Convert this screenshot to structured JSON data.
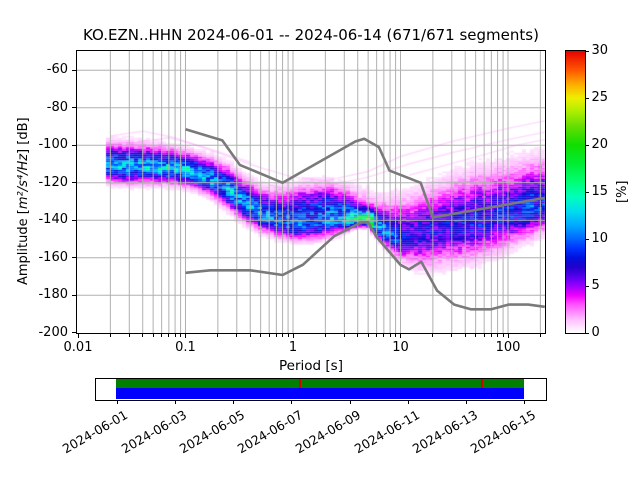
{
  "chart_data": {
    "type": "heatmap",
    "title": "KO.EZN..HHN   2024-06-01 -- 2024-06-14  (671/671 segments)",
    "xlabel": "Period [s]",
    "ylabel_parts": {
      "prefix": "Amplitude [",
      "math": "m²/s⁴/Hz",
      "suffix": "] [dB]"
    },
    "x_scale": "log",
    "xlim": [
      0.01,
      220
    ],
    "ylim": [
      -200,
      -50
    ],
    "x_ticks": [
      {
        "value": 0.01,
        "label": "0.01"
      },
      {
        "value": 0.1,
        "label": "0.1"
      },
      {
        "value": 1,
        "label": "1"
      },
      {
        "value": 10,
        "label": "10"
      },
      {
        "value": 100,
        "label": "100"
      }
    ],
    "y_ticks": [
      {
        "value": -60,
        "label": "-60"
      },
      {
        "value": -80,
        "label": "-80"
      },
      {
        "value": -100,
        "label": "-100"
      },
      {
        "value": -120,
        "label": "-120"
      },
      {
        "value": -140,
        "label": "-140"
      },
      {
        "value": -160,
        "label": "-160"
      },
      {
        "value": -180,
        "label": "-180"
      },
      {
        "value": -200,
        "label": "-200"
      }
    ],
    "grid": true,
    "grid_color": "#b0b0b0",
    "colorbar": {
      "label": "[%]",
      "lim": [
        0,
        30
      ],
      "ticks": [
        {
          "value": 0,
          "label": "0"
        },
        {
          "value": 5,
          "label": "5"
        },
        {
          "value": 10,
          "label": "10"
        },
        {
          "value": 15,
          "label": "15"
        },
        {
          "value": 20,
          "label": "20"
        },
        {
          "value": 25,
          "label": "25"
        },
        {
          "value": 30,
          "label": "30"
        }
      ],
      "stops": [
        [
          0,
          "#ffffff"
        ],
        [
          0.05,
          "#ffbbff"
        ],
        [
          0.1,
          "#ff55ff"
        ],
        [
          0.133,
          "#ee00ff"
        ],
        [
          0.167,
          "#9900ff"
        ],
        [
          0.2,
          "#5500ee"
        ],
        [
          0.233,
          "#2200cc"
        ],
        [
          0.267,
          "#0011dd"
        ],
        [
          0.3,
          "#0033ff"
        ],
        [
          0.333,
          "#0066ff"
        ],
        [
          0.383,
          "#00aaff"
        ],
        [
          0.433,
          "#00ddee"
        ],
        [
          0.483,
          "#00ffbb"
        ],
        [
          0.533,
          "#00ff77"
        ],
        [
          0.6,
          "#00ee33"
        ],
        [
          0.667,
          "#11dd00"
        ],
        [
          0.733,
          "#66dd00"
        ],
        [
          0.783,
          "#aaee00"
        ],
        [
          0.833,
          "#eeee00"
        ],
        [
          0.883,
          "#ffaa00"
        ],
        [
          0.933,
          "#ff5500"
        ],
        [
          1,
          "#e60000"
        ]
      ]
    },
    "noise_models": {
      "color": "#7a7a7a",
      "nhnm": [
        [
          0.1,
          -91.5
        ],
        [
          0.22,
          -97.4
        ],
        [
          0.32,
          -110.5
        ],
        [
          0.8,
          -120
        ],
        [
          3.8,
          -98
        ],
        [
          4.6,
          -96.5
        ],
        [
          6.3,
          -101
        ],
        [
          7.9,
          -113.5
        ],
        [
          15.4,
          -120
        ],
        [
          20,
          -138.5
        ],
        [
          354.8,
          -126
        ]
      ],
      "nlnm": [
        [
          0.1,
          -168
        ],
        [
          0.17,
          -166.7
        ],
        [
          0.4,
          -166.7
        ],
        [
          0.8,
          -169.2
        ],
        [
          1.24,
          -163.7
        ],
        [
          2.4,
          -148.6
        ],
        [
          4.3,
          -141.1
        ],
        [
          5,
          -141.1
        ],
        [
          6,
          -149
        ],
        [
          10,
          -163.8
        ],
        [
          12,
          -166.2
        ],
        [
          15.6,
          -162.1
        ],
        [
          21.9,
          -177.5
        ],
        [
          31.6,
          -185
        ],
        [
          45,
          -187.5
        ],
        [
          70,
          -187.5
        ],
        [
          101,
          -185
        ],
        [
          154,
          -185
        ],
        [
          328,
          -187.5
        ]
      ]
    },
    "density_ridge_columns": "[period_s, mode_dB, peak_percent, spread_up_dB, spread_down_dB]",
    "density_ridge": [
      [
        0.018,
        -111,
        15.0,
        6.5,
        5.0
      ],
      [
        0.03,
        -112,
        15.5,
        6.5,
        5.0
      ],
      [
        0.05,
        -112,
        16.5,
        6.0,
        4.8
      ],
      [
        0.08,
        -113,
        17.0,
        5.5,
        4.5
      ],
      [
        0.12,
        -115,
        17.0,
        5.5,
        4.5
      ],
      [
        0.18,
        -119,
        16.0,
        6.0,
        5.0
      ],
      [
        0.25,
        -124,
        15.5,
        6.5,
        5.5
      ],
      [
        0.35,
        -131,
        15.0,
        7.0,
        5.5
      ],
      [
        0.5,
        -137,
        14.5,
        7.0,
        5.0
      ],
      [
        0.7,
        -141,
        13.0,
        7.5,
        4.5
      ],
      [
        1.0,
        -143,
        12.5,
        8.5,
        4.5
      ],
      [
        1.5,
        -142.5,
        12.0,
        9.5,
        5.0
      ],
      [
        2.2,
        -141,
        13.0,
        9.0,
        4.5
      ],
      [
        3.0,
        -140.5,
        16.0,
        7.0,
        3.5
      ],
      [
        4.0,
        -140,
        24.0,
        4.5,
        2.2
      ],
      [
        5.0,
        -140.5,
        26.0,
        4.0,
        2.0
      ],
      [
        6.0,
        -144,
        17.0,
        6.0,
        3.0
      ],
      [
        7.5,
        -148,
        14.0,
        8.0,
        4.0
      ],
      [
        10,
        -150,
        10.5,
        11,
        6.5
      ],
      [
        14,
        -148,
        9.5,
        12,
        9.5
      ],
      [
        20,
        -145,
        10.0,
        12,
        11
      ],
      [
        30,
        -143,
        10.5,
        13,
        11
      ],
      [
        50,
        -141,
        10.5,
        14,
        11
      ],
      [
        80,
        -139,
        11.0,
        14,
        10
      ],
      [
        120,
        -136.5,
        11.5,
        14,
        9
      ],
      [
        200,
        -132.5,
        12.5,
        13,
        8
      ]
    ],
    "secondary_blob": {
      "period": 1.9,
      "db": -130,
      "peak_percent": 4.2,
      "sigma_log_period": 0.32,
      "sigma_db": 6
    },
    "outlier_tracks": [
      [
        [
          0.02,
          -95
        ],
        [
          0.04,
          -92.5
        ],
        [
          0.08,
          -96
        ],
        [
          0.2,
          -104
        ],
        [
          0.5,
          -112
        ],
        [
          1,
          -117
        ],
        [
          2,
          -119
        ],
        [
          5,
          -114
        ],
        [
          10,
          -106
        ],
        [
          30,
          -98
        ],
        [
          100,
          -91
        ],
        [
          220,
          -87
        ]
      ],
      [
        [
          0.6,
          -121
        ],
        [
          1,
          -124
        ],
        [
          2,
          -122
        ],
        [
          5,
          -117
        ],
        [
          12,
          -110
        ],
        [
          30,
          -104
        ],
        [
          100,
          -97
        ],
        [
          220,
          -93
        ]
      ],
      [
        [
          12,
          -116
        ],
        [
          25,
          -111
        ],
        [
          60,
          -105
        ],
        [
          120,
          -100
        ],
        [
          220,
          -97
        ]
      ],
      [
        [
          0.03,
          -99
        ],
        [
          0.07,
          -96
        ],
        [
          0.15,
          -101
        ],
        [
          0.4,
          -109
        ]
      ]
    ]
  },
  "timeline": {
    "date_labels": [
      "2024-06-01",
      "2024-06-03",
      "2024-06-05",
      "2024-06-07",
      "2024-06-09",
      "2024-06-11",
      "2024-06-13",
      "2024-06-15"
    ],
    "span_days": 14,
    "coverage_color": "#007f00",
    "histogram_color": "#0000ff",
    "gap_color": "#d40000",
    "gaps_frac": [
      0.449,
      0.895
    ]
  }
}
